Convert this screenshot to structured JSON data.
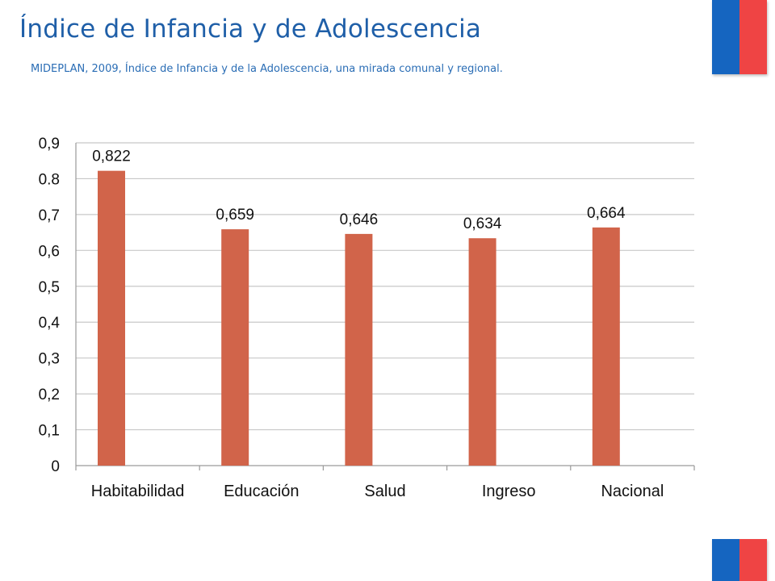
{
  "header": {
    "title": "Índice de Infancia y de Adolescencia",
    "subtitle": "MIDEPLAN, 2009, Índice de Infancia y de la Adolescencia, una mirada comunal y regional."
  },
  "colors": {
    "title": "#1f5fa8",
    "bar": "#d1644a",
    "gridline": "#c8c8c8",
    "flag_blue": "#1565c0",
    "flag_red": "#ef4444"
  },
  "chart_data": {
    "type": "bar",
    "title": "",
    "xlabel": "",
    "ylabel": "",
    "categories": [
      "Habitabilidad",
      "Educación",
      "Salud",
      "Ingreso",
      "Nacional"
    ],
    "values": [
      0.822,
      0.659,
      0.646,
      0.634,
      0.664
    ],
    "data_labels": [
      "0,822",
      "0,659",
      "0,646",
      "0,634",
      "0,664"
    ],
    "ylim": [
      0,
      0.9
    ],
    "yticks": [
      0,
      0.1,
      0.2,
      0.3,
      0.4,
      0.5,
      0.6,
      0.7,
      0.8,
      0.9
    ],
    "ytick_labels": [
      "0",
      "0,1",
      "0,2",
      "0,3",
      "0,4",
      "0,5",
      "0,6",
      "0,7",
      "0.8",
      "0,9"
    ],
    "grid": true,
    "legend": "none"
  }
}
